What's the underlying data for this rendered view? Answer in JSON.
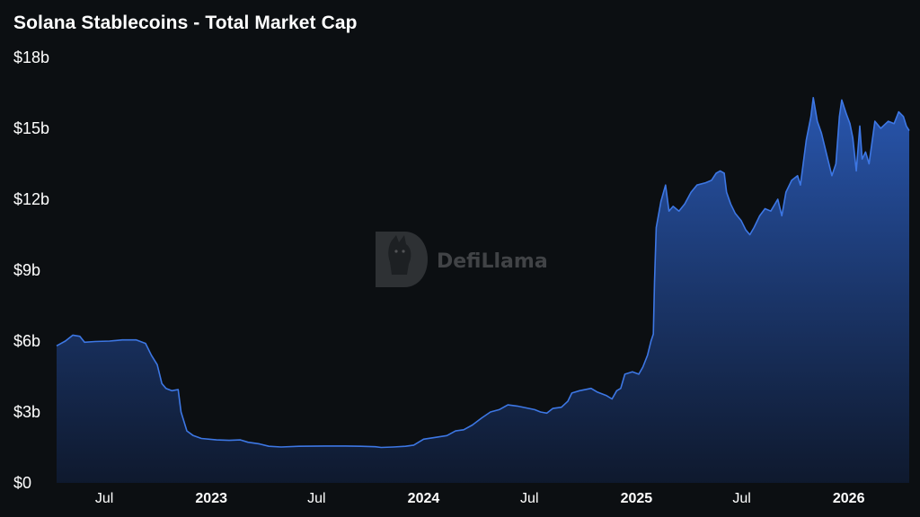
{
  "chart_data": {
    "type": "area",
    "title": "Solana Stablecoins - Total Market Cap",
    "xlabel": "",
    "ylabel": "",
    "ylim": [
      0,
      18
    ],
    "y_unit": "billion USD",
    "y_ticks": [
      {
        "value": 0,
        "label": "$0"
      },
      {
        "value": 3,
        "label": "$3b"
      },
      {
        "value": 6,
        "label": "$6b"
      },
      {
        "value": 9,
        "label": "$9b"
      },
      {
        "value": 12,
        "label": "$12b"
      },
      {
        "value": 15,
        "label": "$15b"
      },
      {
        "value": 18,
        "label": "$18b"
      }
    ],
    "x_range": [
      "2022-04-10",
      "2026-04-15"
    ],
    "x_ticks": [
      {
        "date": "2022-07-01",
        "label": "Jul",
        "bold": false
      },
      {
        "date": "2023-01-01",
        "label": "2023",
        "bold": true
      },
      {
        "date": "2023-07-01",
        "label": "Jul",
        "bold": false
      },
      {
        "date": "2024-01-01",
        "label": "2024",
        "bold": true
      },
      {
        "date": "2024-07-01",
        "label": "Jul",
        "bold": false
      },
      {
        "date": "2025-01-01",
        "label": "2025",
        "bold": true
      },
      {
        "date": "2025-07-01",
        "label": "Jul",
        "bold": false
      },
      {
        "date": "2026-01-01",
        "label": "2026",
        "bold": true
      }
    ],
    "grid": false,
    "legend": "none",
    "colors": {
      "line": "#3d77e4",
      "fill_top": "#2a5ab7",
      "fill_bottom": "#0f1b33",
      "background": "#0c0f12"
    },
    "series": [
      {
        "points": [
          [
            "2022-04-10",
            5.8
          ],
          [
            "2022-04-25",
            6.0
          ],
          [
            "2022-05-08",
            6.25
          ],
          [
            "2022-05-20",
            6.2
          ],
          [
            "2022-05-28",
            5.95
          ],
          [
            "2022-06-15",
            5.98
          ],
          [
            "2022-07-10",
            6.0
          ],
          [
            "2022-08-01",
            6.05
          ],
          [
            "2022-08-25",
            6.05
          ],
          [
            "2022-09-10",
            5.9
          ],
          [
            "2022-09-20",
            5.4
          ],
          [
            "2022-09-30",
            5.0
          ],
          [
            "2022-10-08",
            4.2
          ],
          [
            "2022-10-15",
            4.0
          ],
          [
            "2022-10-25",
            3.9
          ],
          [
            "2022-11-05",
            3.95
          ],
          [
            "2022-11-10",
            3.0
          ],
          [
            "2022-11-20",
            2.2
          ],
          [
            "2022-12-01",
            2.0
          ],
          [
            "2022-12-15",
            1.88
          ],
          [
            "2023-01-10",
            1.82
          ],
          [
            "2023-02-01",
            1.8
          ],
          [
            "2023-02-20",
            1.82
          ],
          [
            "2023-03-05",
            1.72
          ],
          [
            "2023-03-25",
            1.65
          ],
          [
            "2023-04-10",
            1.55
          ],
          [
            "2023-05-01",
            1.52
          ],
          [
            "2023-06-01",
            1.55
          ],
          [
            "2023-07-15",
            1.56
          ],
          [
            "2023-08-20",
            1.56
          ],
          [
            "2023-09-15",
            1.55
          ],
          [
            "2023-10-10",
            1.53
          ],
          [
            "2023-10-20",
            1.5
          ],
          [
            "2023-11-10",
            1.52
          ],
          [
            "2023-12-01",
            1.55
          ],
          [
            "2023-12-15",
            1.6
          ],
          [
            "2024-01-01",
            1.85
          ],
          [
            "2024-01-20",
            1.92
          ],
          [
            "2024-02-10",
            2.0
          ],
          [
            "2024-02-25",
            2.2
          ],
          [
            "2024-03-10",
            2.25
          ],
          [
            "2024-03-25",
            2.45
          ],
          [
            "2024-04-10",
            2.75
          ],
          [
            "2024-04-25",
            3.0
          ],
          [
            "2024-05-10",
            3.1
          ],
          [
            "2024-05-25",
            3.3
          ],
          [
            "2024-06-10",
            3.25
          ],
          [
            "2024-07-10",
            3.1
          ],
          [
            "2024-07-20",
            3.0
          ],
          [
            "2024-07-31",
            2.95
          ],
          [
            "2024-08-10",
            3.15
          ],
          [
            "2024-08-25",
            3.2
          ],
          [
            "2024-09-05",
            3.45
          ],
          [
            "2024-09-12",
            3.8
          ],
          [
            "2024-09-25",
            3.9
          ],
          [
            "2024-10-15",
            4.0
          ],
          [
            "2024-10-25",
            3.85
          ],
          [
            "2024-11-10",
            3.7
          ],
          [
            "2024-11-20",
            3.55
          ],
          [
            "2024-11-28",
            3.9
          ],
          [
            "2024-12-05",
            4.0
          ],
          [
            "2024-12-12",
            4.6
          ],
          [
            "2024-12-25",
            4.7
          ],
          [
            "2025-01-05",
            4.6
          ],
          [
            "2025-01-12",
            4.9
          ],
          [
            "2025-01-20",
            5.4
          ],
          [
            "2025-01-26",
            6.0
          ],
          [
            "2025-01-30",
            6.3
          ],
          [
            "2025-02-01",
            8.5
          ],
          [
            "2025-02-04",
            10.8
          ],
          [
            "2025-02-12",
            11.9
          ],
          [
            "2025-02-20",
            12.6
          ],
          [
            "2025-02-26",
            11.5
          ],
          [
            "2025-03-05",
            11.7
          ],
          [
            "2025-03-15",
            11.5
          ],
          [
            "2025-03-25",
            11.8
          ],
          [
            "2025-04-05",
            12.3
          ],
          [
            "2025-04-15",
            12.6
          ],
          [
            "2025-04-30",
            12.7
          ],
          [
            "2025-05-10",
            12.8
          ],
          [
            "2025-05-18",
            13.1
          ],
          [
            "2025-05-25",
            13.2
          ],
          [
            "2025-06-01",
            13.1
          ],
          [
            "2025-06-05",
            12.3
          ],
          [
            "2025-06-12",
            11.8
          ],
          [
            "2025-06-20",
            11.4
          ],
          [
            "2025-06-30",
            11.1
          ],
          [
            "2025-07-08",
            10.7
          ],
          [
            "2025-07-15",
            10.5
          ],
          [
            "2025-07-22",
            10.8
          ],
          [
            "2025-08-01",
            11.3
          ],
          [
            "2025-08-10",
            11.6
          ],
          [
            "2025-08-20",
            11.5
          ],
          [
            "2025-09-01",
            12.0
          ],
          [
            "2025-09-08",
            11.3
          ],
          [
            "2025-09-15",
            12.3
          ],
          [
            "2025-09-25",
            12.8
          ],
          [
            "2025-10-05",
            13.0
          ],
          [
            "2025-10-10",
            12.6
          ],
          [
            "2025-10-20",
            14.5
          ],
          [
            "2025-10-28",
            15.5
          ],
          [
            "2025-11-01",
            16.3
          ],
          [
            "2025-11-08",
            15.3
          ],
          [
            "2025-11-15",
            14.8
          ],
          [
            "2025-11-25",
            13.8
          ],
          [
            "2025-12-03",
            13.0
          ],
          [
            "2025-12-10",
            13.5
          ],
          [
            "2025-12-16",
            15.5
          ],
          [
            "2025-12-20",
            16.2
          ],
          [
            "2025-12-28",
            15.6
          ],
          [
            "2026-01-03",
            15.2
          ],
          [
            "2026-01-08",
            14.6
          ],
          [
            "2026-01-14",
            13.2
          ],
          [
            "2026-01-20",
            15.1
          ],
          [
            "2026-01-24",
            13.7
          ],
          [
            "2026-01-30",
            14.0
          ],
          [
            "2026-02-05",
            13.5
          ],
          [
            "2026-02-15",
            15.3
          ],
          [
            "2026-02-25",
            15.0
          ],
          [
            "2026-03-10",
            15.3
          ],
          [
            "2026-03-20",
            15.2
          ],
          [
            "2026-03-28",
            15.7
          ],
          [
            "2026-04-05",
            15.5
          ],
          [
            "2026-04-10",
            15.1
          ],
          [
            "2026-04-15",
            14.9
          ]
        ]
      }
    ]
  },
  "watermark": {
    "text": "DefiLlama",
    "icon": "llama-logo-icon"
  }
}
